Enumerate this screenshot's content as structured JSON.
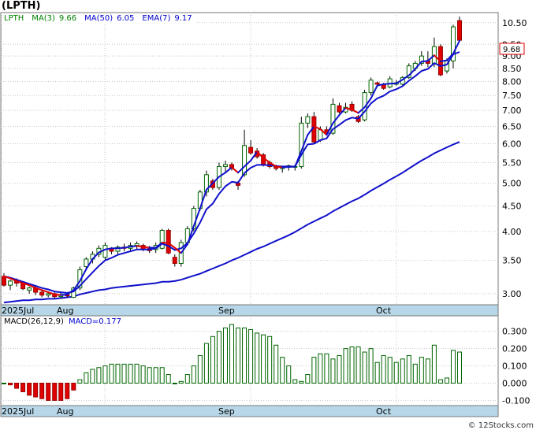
{
  "title": "(LPTH)",
  "price_legend": {
    "symbol": "LPTH",
    "ma3_label": "MA(3)",
    "ma3_value": "9.66",
    "ma50_label": "MA(50)",
    "ma50_value": "6.05",
    "ema7_label": "EMA(7)",
    "ema7_value": "9.17"
  },
  "macd_legend": {
    "label": "MACD(26,12,9)",
    "value_label": "MACD=0.177"
  },
  "last_price_tag": "9.68",
  "watermark": "© 12Stocks.com",
  "colors": {
    "up_candle": "#006400",
    "down_candle": "#e00000",
    "ma_line": "#1010cc",
    "ma3_red": "#dd0000",
    "grid": "#c8c8c8",
    "date_strip": "#b7d7e8",
    "macd_bar": "#006400",
    "macd_bar_neg": "#e00000",
    "legend_text": "#008000",
    "legend_blue": "#0000cc"
  },
  "chart_data": [
    {
      "type": "candlestick",
      "y_scale": "log",
      "ylim": [
        2.85,
        11.0
      ],
      "y_ticks": [
        "3.00",
        "3.50",
        "4.00",
        "4.50",
        "5.00",
        "5.50",
        "6.00",
        "6.50",
        "7.00",
        "7.50",
        "8.00",
        "8.50",
        "9.00",
        "9.50",
        "10.50"
      ],
      "x_labels": [
        "2025Jul",
        "Aug",
        "Sep",
        "Oct"
      ],
      "grid": true,
      "candles": [
        [
          3.25,
          3.3,
          3.1,
          3.12
        ],
        [
          3.12,
          3.2,
          3.05,
          3.18
        ],
        [
          3.18,
          3.22,
          3.1,
          3.15
        ],
        [
          3.15,
          3.18,
          3.05,
          3.07
        ],
        [
          3.05,
          3.1,
          3.0,
          3.08
        ],
        [
          3.08,
          3.12,
          2.98,
          3.02
        ],
        [
          3.02,
          3.05,
          2.95,
          2.98
        ],
        [
          2.98,
          3.02,
          2.95,
          3.0
        ],
        [
          3.0,
          3.02,
          2.93,
          2.96
        ],
        [
          2.96,
          3.02,
          2.94,
          2.99
        ],
        [
          2.99,
          3.0,
          2.95,
          2.97
        ],
        [
          2.95,
          3.1,
          2.94,
          3.08
        ],
        [
          3.08,
          3.4,
          3.05,
          3.35
        ],
        [
          3.4,
          3.55,
          3.35,
          3.52
        ],
        [
          3.52,
          3.65,
          3.45,
          3.6
        ],
        [
          3.6,
          3.75,
          3.55,
          3.7
        ],
        [
          3.55,
          3.8,
          3.5,
          3.75
        ],
        [
          3.7,
          3.72,
          3.6,
          3.65
        ],
        [
          3.65,
          3.75,
          3.6,
          3.72
        ],
        [
          3.72,
          3.78,
          3.65,
          3.7
        ],
        [
          3.7,
          3.8,
          3.65,
          3.75
        ],
        [
          3.75,
          3.82,
          3.68,
          3.78
        ],
        [
          3.75,
          3.78,
          3.65,
          3.68
        ],
        [
          3.7,
          3.74,
          3.62,
          3.66
        ],
        [
          3.68,
          3.8,
          3.62,
          3.75
        ],
        [
          3.7,
          4.05,
          3.68,
          4.02
        ],
        [
          4.02,
          4.05,
          3.6,
          3.62
        ],
        [
          3.55,
          3.6,
          3.4,
          3.45
        ],
        [
          3.45,
          3.85,
          3.4,
          3.8
        ],
        [
          3.8,
          4.1,
          3.75,
          4.05
        ],
        [
          4.05,
          4.5,
          4.0,
          4.45
        ],
        [
          4.45,
          4.85,
          4.4,
          4.8
        ],
        [
          4.8,
          5.3,
          4.7,
          5.2
        ],
        [
          5.05,
          5.1,
          4.85,
          4.9
        ],
        [
          4.9,
          5.5,
          4.85,
          5.4
        ],
        [
          5.4,
          5.55,
          5.25,
          5.45
        ],
        [
          5.45,
          5.5,
          5.3,
          5.35
        ],
        [
          5.0,
          5.05,
          4.85,
          4.95
        ],
        [
          5.2,
          6.4,
          5.15,
          5.95
        ],
        [
          5.9,
          6.1,
          5.7,
          5.75
        ],
        [
          5.8,
          5.88,
          5.6,
          5.65
        ],
        [
          5.7,
          5.75,
          5.4,
          5.45
        ],
        [
          5.5,
          5.55,
          5.35,
          5.4
        ],
        [
          5.4,
          5.45,
          5.3,
          5.35
        ],
        [
          5.35,
          5.4,
          5.25,
          5.38
        ],
        [
          5.38,
          5.45,
          5.3,
          5.42
        ],
        [
          5.4,
          5.45,
          5.3,
          5.4
        ],
        [
          5.4,
          6.8,
          5.35,
          6.6
        ],
        [
          6.6,
          6.9,
          6.45,
          6.8
        ],
        [
          6.8,
          6.95,
          6.0,
          6.05
        ],
        [
          6.1,
          6.5,
          6.05,
          6.4
        ],
        [
          6.4,
          6.5,
          6.25,
          6.3
        ],
        [
          6.3,
          7.4,
          6.25,
          7.2
        ],
        [
          7.15,
          7.25,
          6.9,
          6.95
        ],
        [
          6.95,
          7.25,
          6.9,
          7.1
        ],
        [
          7.2,
          7.3,
          6.95,
          7.0
        ],
        [
          6.8,
          6.85,
          6.6,
          6.65
        ],
        [
          6.7,
          7.7,
          6.65,
          7.6
        ],
        [
          7.6,
          8.15,
          7.5,
          8.05
        ],
        [
          7.95,
          8.0,
          7.85,
          7.9
        ],
        [
          7.9,
          7.95,
          7.7,
          7.75
        ],
        [
          7.8,
          8.2,
          7.75,
          8.1
        ],
        [
          7.9,
          8.05,
          7.85,
          7.95
        ],
        [
          7.9,
          8.2,
          7.85,
          8.15
        ],
        [
          8.15,
          8.7,
          8.1,
          8.6
        ],
        [
          8.5,
          8.8,
          8.4,
          8.7
        ],
        [
          8.7,
          9.2,
          8.6,
          9.0
        ],
        [
          8.8,
          9.2,
          8.55,
          8.7
        ],
        [
          8.7,
          9.8,
          8.55,
          9.4
        ],
        [
          9.4,
          9.5,
          8.2,
          8.25
        ],
        [
          8.4,
          8.9,
          8.3,
          8.8
        ],
        [
          8.8,
          10.4,
          8.5,
          10.3
        ],
        [
          10.6,
          10.8,
          9.68,
          9.68
        ]
      ],
      "ma3": [
        3.25,
        3.22,
        3.18,
        3.15,
        3.12,
        3.08,
        3.05,
        3.02,
        2.99,
        2.98,
        2.99,
        3.05,
        3.18,
        3.36,
        3.52,
        3.63,
        3.68,
        3.7,
        3.7,
        3.71,
        3.73,
        3.74,
        3.73,
        3.71,
        3.71,
        3.8,
        3.79,
        3.71,
        3.62,
        3.77,
        4.1,
        4.45,
        4.85,
        5.0,
        5.15,
        5.25,
        5.38,
        5.25,
        5.4,
        5.55,
        5.78,
        5.62,
        5.5,
        5.4,
        5.38,
        5.39,
        5.4,
        5.8,
        6.25,
        6.5,
        6.42,
        6.25,
        6.6,
        6.85,
        7.08,
        7.02,
        6.92,
        7.1,
        7.4,
        7.85,
        7.9,
        7.92,
        7.93,
        8.07,
        8.23,
        8.48,
        8.77,
        8.8,
        9.03,
        8.78,
        8.82,
        9.1,
        9.66
      ],
      "ema7": [
        3.25,
        3.23,
        3.2,
        3.17,
        3.14,
        3.11,
        3.08,
        3.06,
        3.03,
        3.02,
        3.01,
        3.03,
        3.11,
        3.21,
        3.31,
        3.41,
        3.5,
        3.54,
        3.59,
        3.62,
        3.65,
        3.68,
        3.68,
        3.68,
        3.7,
        3.78,
        3.74,
        3.67,
        3.7,
        3.79,
        3.96,
        4.17,
        4.43,
        4.55,
        4.76,
        4.93,
        5.03,
        5.01,
        5.24,
        5.37,
        5.44,
        5.44,
        5.43,
        5.41,
        5.4,
        5.4,
        5.4,
        5.7,
        5.98,
        6.0,
        6.1,
        6.15,
        6.42,
        6.55,
        6.69,
        6.77,
        6.74,
        6.96,
        7.23,
        7.4,
        7.49,
        7.64,
        7.72,
        7.83,
        8.03,
        8.2,
        8.4,
        8.48,
        8.71,
        8.59,
        8.65,
        9.07,
        9.17
      ],
      "ma50": [
        2.88,
        2.89,
        2.9,
        2.91,
        2.91,
        2.92,
        2.92,
        2.93,
        2.93,
        2.94,
        2.95,
        2.96,
        2.99,
        3.01,
        3.03,
        3.05,
        3.06,
        3.08,
        3.09,
        3.1,
        3.11,
        3.12,
        3.13,
        3.14,
        3.15,
        3.17,
        3.17,
        3.18,
        3.2,
        3.23,
        3.26,
        3.29,
        3.33,
        3.37,
        3.41,
        3.45,
        3.5,
        3.54,
        3.59,
        3.64,
        3.69,
        3.73,
        3.78,
        3.83,
        3.88,
        3.93,
        3.99,
        4.06,
        4.13,
        4.19,
        4.25,
        4.31,
        4.39,
        4.46,
        4.53,
        4.6,
        4.66,
        4.74,
        4.83,
        4.91,
        4.99,
        5.08,
        5.16,
        5.25,
        5.35,
        5.45,
        5.55,
        5.64,
        5.74,
        5.82,
        5.9,
        5.98,
        6.05
      ]
    },
    {
      "type": "bar",
      "name": "MACD(26,12,9)",
      "ylim": [
        -0.13,
        0.39
      ],
      "y_ticks": [
        "0.300",
        "0.200",
        "0.100",
        "0.000",
        "-0.100"
      ],
      "x_labels": [
        "2025Jul",
        "Aug",
        "Sep",
        "Oct"
      ],
      "values": [
        0.0,
        -0.01,
        -0.03,
        -0.05,
        -0.07,
        -0.08,
        -0.09,
        -0.1,
        -0.1,
        -0.1,
        -0.09,
        -0.04,
        0.02,
        0.06,
        0.08,
        0.09,
        0.1,
        0.11,
        0.11,
        0.11,
        0.11,
        0.11,
        0.1,
        0.09,
        0.09,
        0.09,
        0.05,
        0.0,
        0.01,
        0.05,
        0.1,
        0.16,
        0.23,
        0.27,
        0.3,
        0.32,
        0.34,
        0.32,
        0.32,
        0.31,
        0.29,
        0.28,
        0.27,
        0.22,
        0.15,
        0.1,
        0.02,
        0.01,
        0.05,
        0.15,
        0.17,
        0.17,
        0.14,
        0.16,
        0.2,
        0.21,
        0.21,
        0.18,
        0.2,
        0.12,
        0.16,
        0.15,
        0.12,
        0.14,
        0.16,
        0.11,
        0.15,
        0.14,
        0.22,
        0.02,
        0.03,
        0.19,
        0.18
      ]
    }
  ]
}
